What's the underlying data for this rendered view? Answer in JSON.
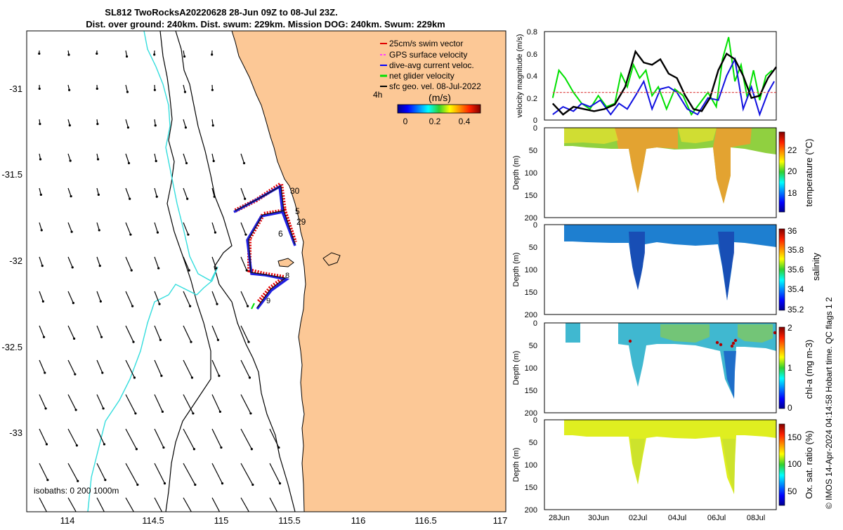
{
  "title": {
    "line1": "SL812 TwoRocksA20220628 28-Jun 09Z to 08-Jul 23Z.",
    "line2": "Dist. over ground: 240km. Dist. swum: 229km. Mission DOG: 240km. Swum: 229km"
  },
  "map": {
    "x_ticks": [
      "114",
      "114.5",
      "115",
      "115.5",
      "116",
      "116.5",
      "117"
    ],
    "y_ticks": [
      "-31",
      "-31.5",
      "-32",
      "-32.5",
      "-33"
    ],
    "legend": [
      {
        "label": "25cm/s swim vector",
        "color": "#e00000"
      },
      {
        "label": "GPS surface velocity",
        "color": "#ff40ff"
      },
      {
        "label": "dive-avg current veloc.",
        "color": "#0000ff"
      },
      {
        "label": "net glider velocity",
        "color": "#00e000"
      },
      {
        "label": "sfc geo. vel. 08-Jul-2022",
        "color": "#000000"
      }
    ],
    "legend_tag": "4h",
    "colorbar_title": "(m/s)",
    "colorbar_ticks": [
      "0",
      "0.2",
      "0.4"
    ],
    "day_labels": [
      "30",
      "5",
      "29",
      "6",
      "8",
      "9"
    ],
    "isobath_text": "isobaths: 0   200  1000m",
    "land_color": "#fcc896",
    "isobath_color": "#33dddd"
  },
  "chart_data": [
    {
      "type": "line",
      "title": "velocity magnitude",
      "ylabel": "velocity magnitude (m/s)",
      "x_tick_labels": [
        "28Jun",
        "30Jun",
        "02Jul",
        "04Jul",
        "06Jul",
        "08Jul"
      ],
      "x_day_range": [
        27.6,
        38.8
      ],
      "ylim": [
        0,
        0.8
      ],
      "y_ticks": [
        "0",
        "0.2",
        "0.4",
        "0.6",
        "0.8"
      ],
      "series": [
        {
          "name": "net glider velocity",
          "color": "#00e000",
          "x": [
            28.0,
            28.3,
            28.6,
            29.0,
            29.4,
            29.8,
            30.2,
            30.6,
            31.0,
            31.3,
            31.6,
            31.9,
            32.2,
            32.5,
            32.8,
            33.1,
            33.5,
            33.9,
            34.3,
            34.7,
            35.1,
            35.5,
            35.9,
            36.2,
            36.5,
            36.8,
            37.1,
            37.4,
            37.7,
            38.0,
            38.3,
            38.6
          ],
          "values": [
            0.2,
            0.45,
            0.38,
            0.25,
            0.15,
            0.1,
            0.22,
            0.12,
            0.15,
            0.42,
            0.3,
            0.5,
            0.38,
            0.45,
            0.22,
            0.3,
            0.1,
            0.28,
            0.22,
            0.05,
            0.15,
            0.25,
            0.12,
            0.55,
            0.75,
            0.35,
            0.5,
            0.2,
            0.45,
            0.18,
            0.4,
            0.45
          ]
        },
        {
          "name": "dive-avg current veloc.",
          "color": "#1010e0",
          "x": [
            28.0,
            28.5,
            29.0,
            29.4,
            29.8,
            30.3,
            30.8,
            31.2,
            31.6,
            32.0,
            32.4,
            32.8,
            33.2,
            33.6,
            34.0,
            34.5,
            35.0,
            35.5,
            36.0,
            36.4,
            36.8,
            37.2,
            37.6,
            38.0,
            38.4,
            38.7
          ],
          "values": [
            0.05,
            0.12,
            0.08,
            0.15,
            0.12,
            0.18,
            0.05,
            0.15,
            0.1,
            0.22,
            0.35,
            0.1,
            0.28,
            0.3,
            0.25,
            0.1,
            0.05,
            0.2,
            0.18,
            0.4,
            0.55,
            0.1,
            0.3,
            0.05,
            0.25,
            0.35
          ]
        },
        {
          "name": "sfc geo. vel.",
          "color": "#000000",
          "x": [
            28.0,
            28.5,
            29.0,
            29.5,
            30.0,
            30.5,
            31.0,
            31.5,
            32.0,
            32.4,
            32.8,
            33.2,
            33.6,
            34.0,
            34.4,
            34.8,
            35.2,
            35.6,
            36.0,
            36.4,
            36.8,
            37.2,
            37.6,
            38.0,
            38.4,
            38.8
          ],
          "values": [
            0.15,
            0.05,
            0.12,
            0.1,
            0.08,
            0.1,
            0.14,
            0.3,
            0.62,
            0.52,
            0.5,
            0.55,
            0.42,
            0.38,
            0.22,
            0.1,
            0.08,
            0.2,
            0.45,
            0.6,
            0.55,
            0.4,
            0.2,
            0.22,
            0.38,
            0.48
          ]
        },
        {
          "name": "25cm/s swim vector",
          "color": "#e05050",
          "x": [
            28.0,
            38.8
          ],
          "values": [
            0.25,
            0.25
          ]
        }
      ]
    },
    {
      "type": "heatmap",
      "title": "temperature",
      "ylabel": "Depth (m)",
      "colorbar_label": "temperature (°C)",
      "colorbar_ticks": [
        "18",
        "20",
        "22"
      ],
      "ylim": [
        200,
        0
      ],
      "y_ticks": [
        "0",
        "50",
        "100",
        "150",
        "200"
      ]
    },
    {
      "type": "heatmap",
      "title": "salinity",
      "ylabel": "Depth (m)",
      "colorbar_label": "salinity",
      "colorbar_ticks": [
        "35.2",
        "35.4",
        "35.6",
        "35.8",
        "36"
      ],
      "ylim": [
        200,
        0
      ],
      "y_ticks": [
        "0",
        "50",
        "100",
        "150",
        "200"
      ]
    },
    {
      "type": "heatmap",
      "title": "chl-a",
      "ylabel": "Depth (m)",
      "colorbar_label": "chl-a (mg m-3)",
      "colorbar_ticks": [
        "0",
        "1",
        "2"
      ],
      "ylim": [
        200,
        0
      ],
      "y_ticks": [
        "0",
        "50",
        "100",
        "150",
        "200"
      ]
    },
    {
      "type": "heatmap",
      "title": "oxygen saturation",
      "ylabel": "Depth (m)",
      "colorbar_label": "Ox. sat. ratio (%)",
      "colorbar_ticks": [
        "50",
        "100",
        "150"
      ],
      "ylim": [
        200,
        0
      ],
      "y_ticks": [
        "0",
        "50",
        "100",
        "150",
        "200"
      ]
    }
  ],
  "footer_text": "© IMOS 14-Apr-2024 04:14:58 Hobart time. QC flags 1  2"
}
